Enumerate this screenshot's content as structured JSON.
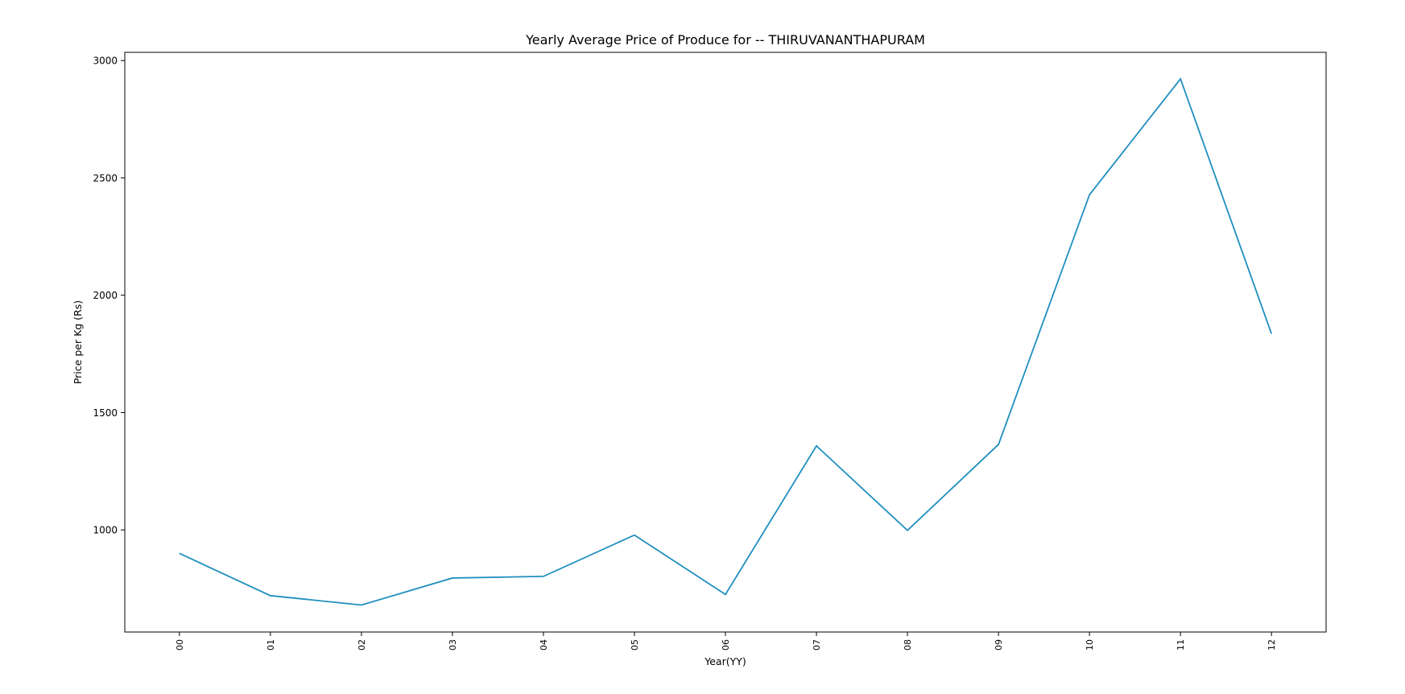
{
  "chart_data": {
    "type": "line",
    "title": "Yearly Average Price of Produce for  --  THIRUVANANTHAPURAM",
    "xlabel": "Year(YY)",
    "ylabel": "Price per Kg (Rs)",
    "categories": [
      "00",
      "01",
      "02",
      "03",
      "04",
      "05",
      "06",
      "07",
      "08",
      "09",
      "10",
      "11",
      "12"
    ],
    "series": [
      {
        "values": [
          900,
          720,
          680,
          795,
          802,
          978,
          725,
          1358,
          998,
          1364,
          2428,
          2922,
          1836
        ],
        "color": "#1f8fbf"
      }
    ],
    "ylim": [
      565,
      3035
    ],
    "yticks": [
      1000,
      1500,
      2000,
      2500,
      3000
    ],
    "ytick_labels": [
      "1000",
      "1500",
      "2000",
      "2500",
      "3000"
    ],
    "xlim": [
      -0.6,
      12.6
    ],
    "grid": false,
    "legend": false
  }
}
